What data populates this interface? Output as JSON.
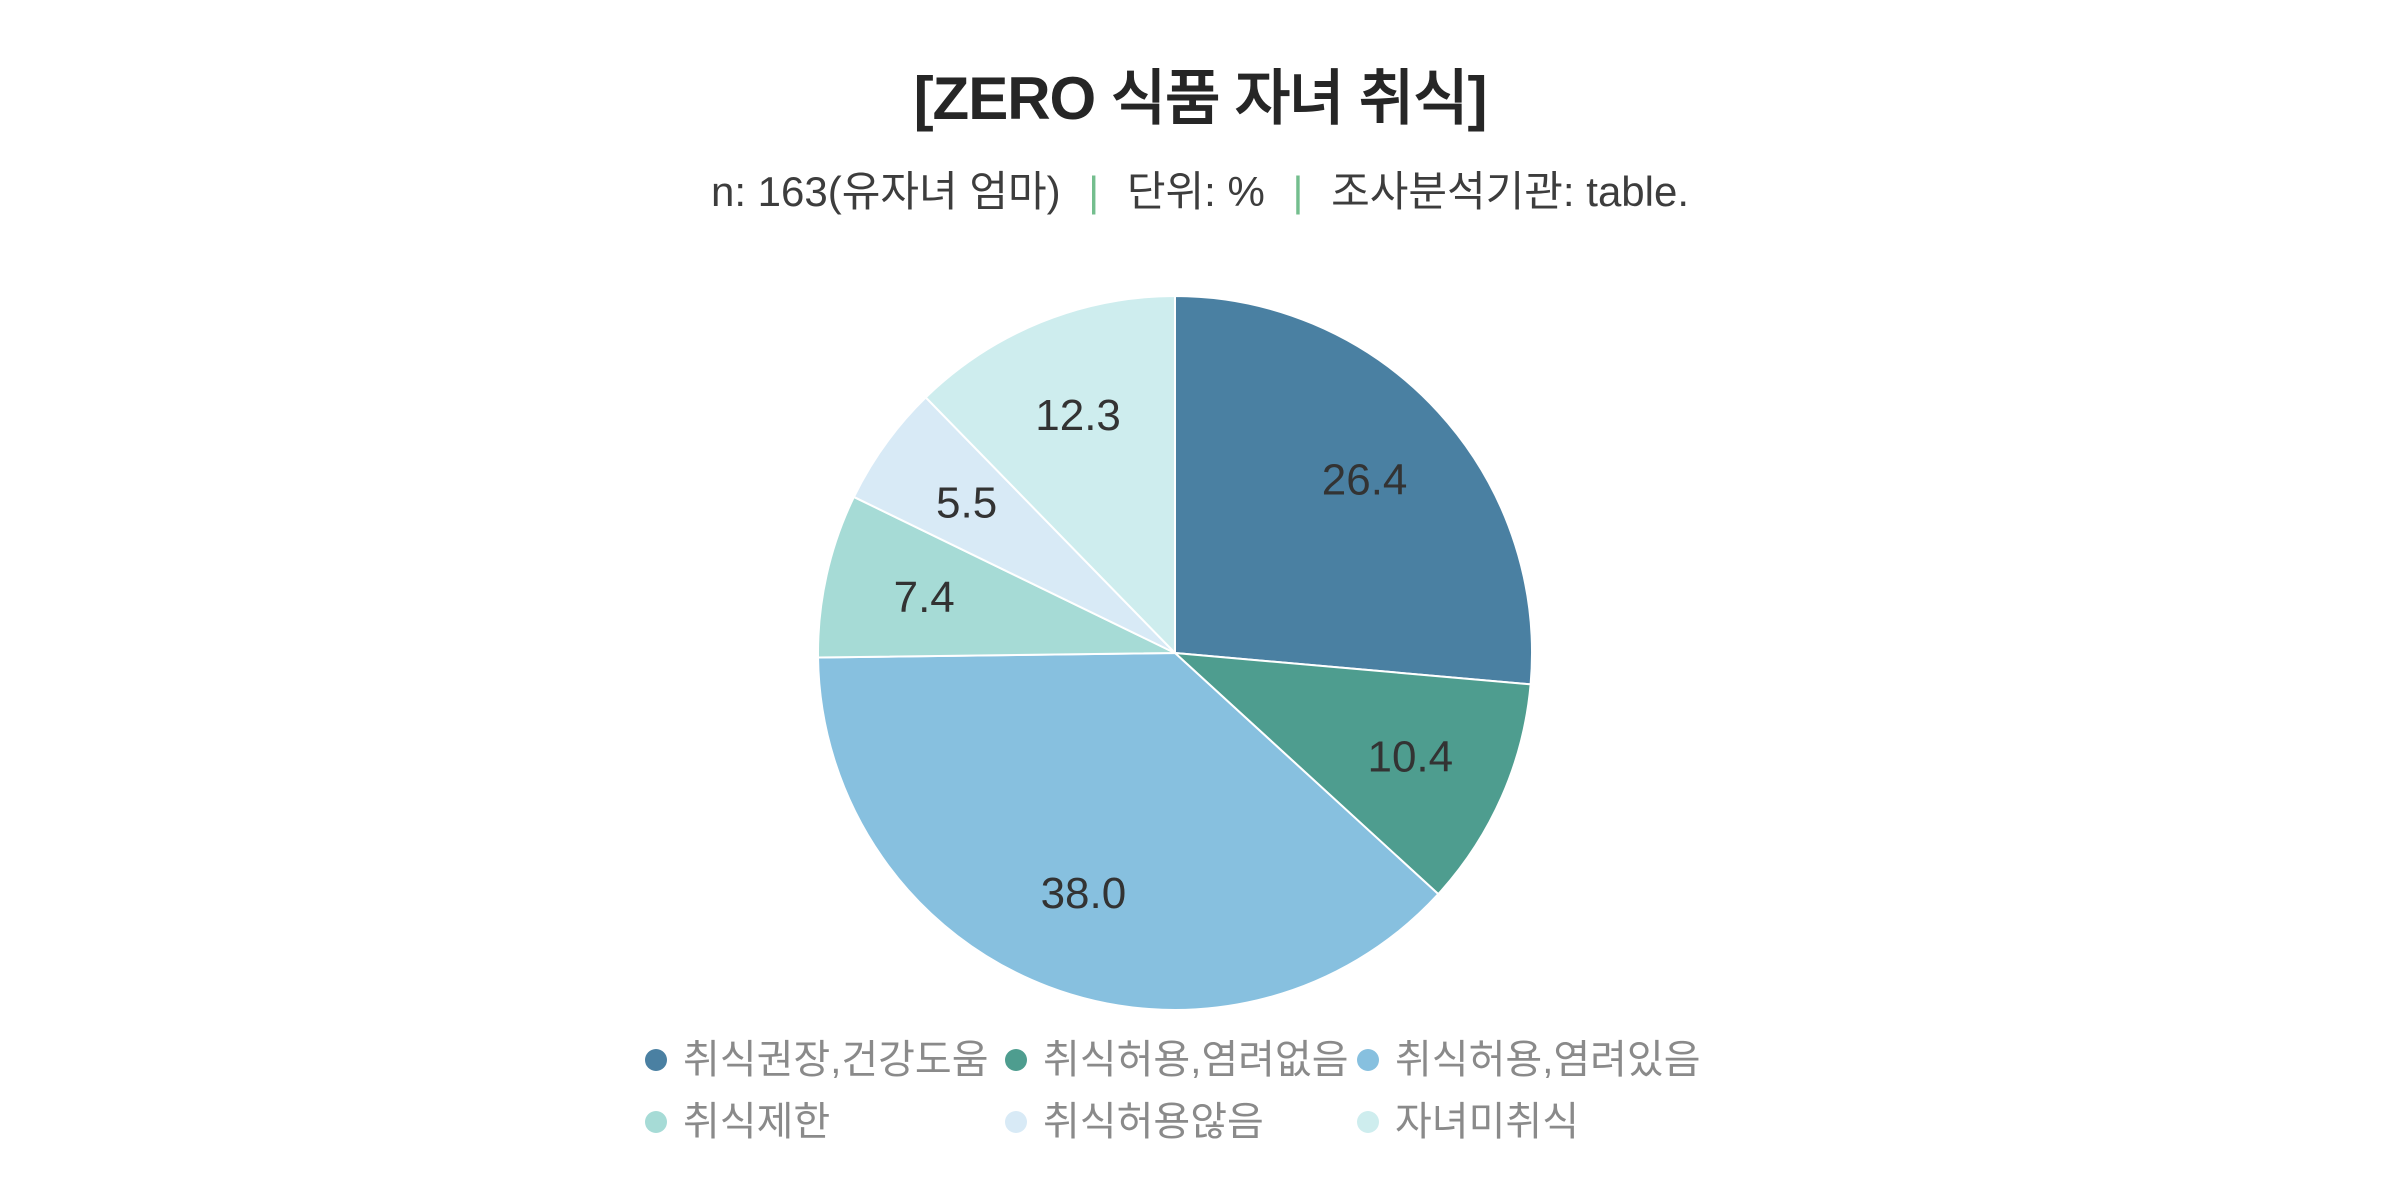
{
  "page": {
    "background": "#ffffff"
  },
  "header": {
    "title": "[ZERO 식품 자녀 취식]",
    "subtitle": {
      "sample": "n: 163(유자녀 엄마)",
      "separator": "|",
      "separator_color": "#74be8e",
      "unit": "단위: %",
      "agency": "조사분석기관: table."
    }
  },
  "chart_data": {
    "type": "pie",
    "title": "[ZERO 식품 자녀 취식]",
    "subtitle": "n: 163(유자녀 엄마) | 단위: % | 조사분석기관: table.",
    "sample_size": 163,
    "unit": "%",
    "start_angle_deg": 0,
    "direction": "clockwise",
    "categories": [
      "취식권장,건강도움",
      "취식허용,염려없음",
      "취식허용,염려있음",
      "취식제한",
      "취식허용않음",
      "자녀미취식"
    ],
    "values": [
      26.4,
      10.4,
      38.0,
      7.4,
      5.5,
      12.3
    ],
    "colors": [
      "#4a80a2",
      "#4e9d8f",
      "#87c0df",
      "#a6dbd6",
      "#d8eaf6",
      "#ceedee"
    ],
    "value_label_format": "one-decimal",
    "value_label_color": "#333333",
    "slice_border_color": "#ffffff",
    "legend_position": "bottom",
    "legend_text_color": "#8a8a8a"
  }
}
